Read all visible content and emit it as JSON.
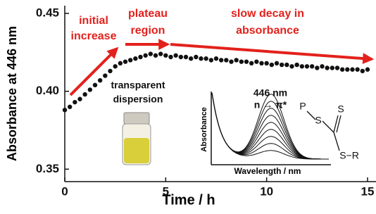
{
  "chart_data": {
    "type": "scatter",
    "xlabel": "Time / h",
    "ylabel": "Absorbance at 446 nm",
    "x": [
      0,
      0.25,
      0.5,
      0.75,
      1,
      1.25,
      1.5,
      1.75,
      2,
      2.25,
      2.5,
      2.75,
      3,
      3.25,
      3.5,
      3.75,
      4,
      4.25,
      4.5,
      4.75,
      5,
      5.25,
      5.5,
      5.75,
      6,
      6.25,
      6.5,
      6.75,
      7,
      7.25,
      7.5,
      7.75,
      8,
      8.25,
      8.5,
      8.75,
      9,
      9.25,
      9.5,
      9.75,
      10,
      10.25,
      10.5,
      10.75,
      11,
      11.25,
      11.5,
      11.75,
      12,
      12.25,
      12.5,
      12.75,
      13,
      13.25,
      13.5,
      13.75,
      14,
      14.25,
      14.5,
      14.75,
      15
    ],
    "values": [
      0.388,
      0.39,
      0.393,
      0.395,
      0.398,
      0.401,
      0.404,
      0.407,
      0.41,
      0.413,
      0.416,
      0.418,
      0.419,
      0.42,
      0.421,
      0.422,
      0.423,
      0.424,
      0.423,
      0.424,
      0.423,
      0.422,
      0.423,
      0.422,
      0.422,
      0.421,
      0.422,
      0.421,
      0.421,
      0.42,
      0.421,
      0.42,
      0.42,
      0.419,
      0.42,
      0.419,
      0.419,
      0.418,
      0.419,
      0.418,
      0.418,
      0.417,
      0.418,
      0.417,
      0.417,
      0.416,
      0.417,
      0.416,
      0.416,
      0.416,
      0.415,
      0.416,
      0.415,
      0.415,
      0.415,
      0.414,
      0.414,
      0.414,
      0.414,
      0.413,
      0.414
    ],
    "color": "#111111",
    "xlim": [
      0,
      15
    ],
    "ylim": [
      0.342,
      0.455
    ],
    "xticks": [
      0,
      5,
      10,
      15
    ],
    "yticks": [
      {
        "value": 0.35,
        "label": "0.35"
      },
      {
        "value": 0.4,
        "label": "0.40"
      },
      {
        "value": 0.45,
        "label": "0.45"
      }
    ],
    "annotations": {
      "initial": [
        "initial",
        "increase"
      ],
      "plateau": [
        "plateau",
        "region"
      ],
      "decay": [
        "slow decay in",
        "absorbance"
      ],
      "dispersion": [
        "transparent",
        "dispersion"
      ]
    },
    "inset": {
      "peak_label": "446 nm",
      "transition": "n → π*",
      "ylabel": "Absorbance",
      "xlabel": "Wavelength / nm"
    },
    "structure": [
      "P",
      "S",
      "S",
      "S−R"
    ]
  }
}
